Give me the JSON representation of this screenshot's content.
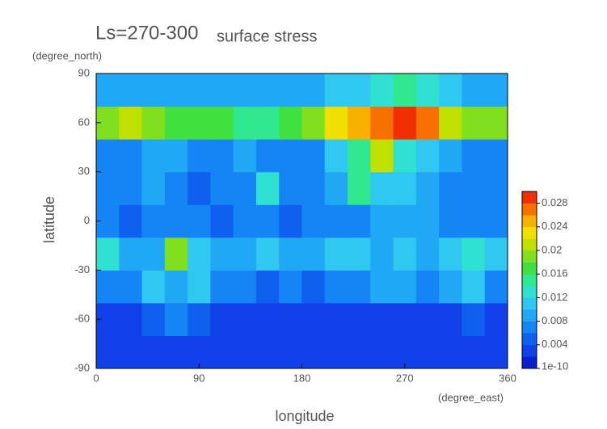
{
  "chart_data": {
    "type": "heatmap",
    "title": "Ls=270-300",
    "subtitle": "surface stress",
    "xlabel": "longitude",
    "ylabel": "latitude",
    "xunit": "(degree_east)",
    "yunit": "(degree_north)",
    "xlim": [
      0,
      360
    ],
    "xticks": [
      0,
      90,
      180,
      270,
      360
    ],
    "ylim": [
      -90,
      90
    ],
    "yticks": [
      -90,
      -60,
      -30,
      0,
      30,
      60,
      90
    ],
    "x": [
      10,
      30,
      50,
      70,
      90,
      110,
      130,
      150,
      170,
      190,
      210,
      230,
      250,
      270,
      290,
      310,
      330,
      350
    ],
    "y": [
      -80,
      -60,
      -40,
      -20,
      0,
      20,
      40,
      60,
      80
    ],
    "z": [
      [
        0.002,
        0.002,
        0.002,
        0.002,
        0.002,
        0.002,
        0.002,
        0.002,
        0.002,
        0.002,
        0.002,
        0.002,
        0.002,
        0.002,
        0.002,
        0.002,
        0.002,
        0.002
      ],
      [
        0.003,
        0.003,
        0.004,
        0.006,
        0.005,
        0.003,
        0.003,
        0.003,
        0.003,
        0.003,
        0.003,
        0.003,
        0.003,
        0.003,
        0.003,
        0.003,
        0.004,
        0.003
      ],
      [
        0.006,
        0.007,
        0.01,
        0.009,
        0.011,
        0.006,
        0.006,
        0.005,
        0.006,
        0.005,
        0.006,
        0.007,
        0.008,
        0.009,
        0.006,
        0.008,
        0.011,
        0.007
      ],
      [
        0.012,
        0.008,
        0.009,
        0.018,
        0.01,
        0.008,
        0.009,
        0.01,
        0.009,
        0.008,
        0.01,
        0.011,
        0.009,
        0.01,
        0.008,
        0.01,
        0.012,
        0.01
      ],
      [
        0.006,
        0.005,
        0.007,
        0.007,
        0.006,
        0.005,
        0.006,
        0.006,
        0.005,
        0.006,
        0.007,
        0.006,
        0.008,
        0.009,
        0.008,
        0.007,
        0.006,
        0.007
      ],
      [
        0.006,
        0.006,
        0.008,
        0.006,
        0.005,
        0.006,
        0.007,
        0.012,
        0.006,
        0.006,
        0.008,
        0.015,
        0.01,
        0.011,
        0.009,
        0.006,
        0.006,
        0.006
      ],
      [
        0.007,
        0.006,
        0.008,
        0.009,
        0.006,
        0.007,
        0.008,
        0.007,
        0.006,
        0.007,
        0.01,
        0.014,
        0.02,
        0.012,
        0.01,
        0.008,
        0.007,
        0.007
      ],
      [
        0.018,
        0.02,
        0.018,
        0.017,
        0.016,
        0.016,
        0.015,
        0.015,
        0.016,
        0.018,
        0.022,
        0.025,
        0.027,
        0.029,
        0.026,
        0.02,
        0.018,
        0.018
      ],
      [
        0.009,
        0.009,
        0.008,
        0.008,
        0.008,
        0.008,
        0.008,
        0.008,
        0.008,
        0.009,
        0.01,
        0.011,
        0.013,
        0.014,
        0.012,
        0.01,
        0.009,
        0.009
      ]
    ],
    "clim": [
      0,
      0.03
    ],
    "cticks": [
      1e-10,
      0.004,
      0.008,
      0.012,
      0.016,
      0.02,
      0.024,
      0.028
    ],
    "colors": [
      "#0a1fd0",
      "#1040e8",
      "#1060f0",
      "#1585f5",
      "#20a8f5",
      "#30c8f0",
      "#30e0d0",
      "#30e890",
      "#40e040",
      "#80e020",
      "#c0e000",
      "#f0e000",
      "#f8b000",
      "#f87000",
      "#f03000"
    ]
  }
}
